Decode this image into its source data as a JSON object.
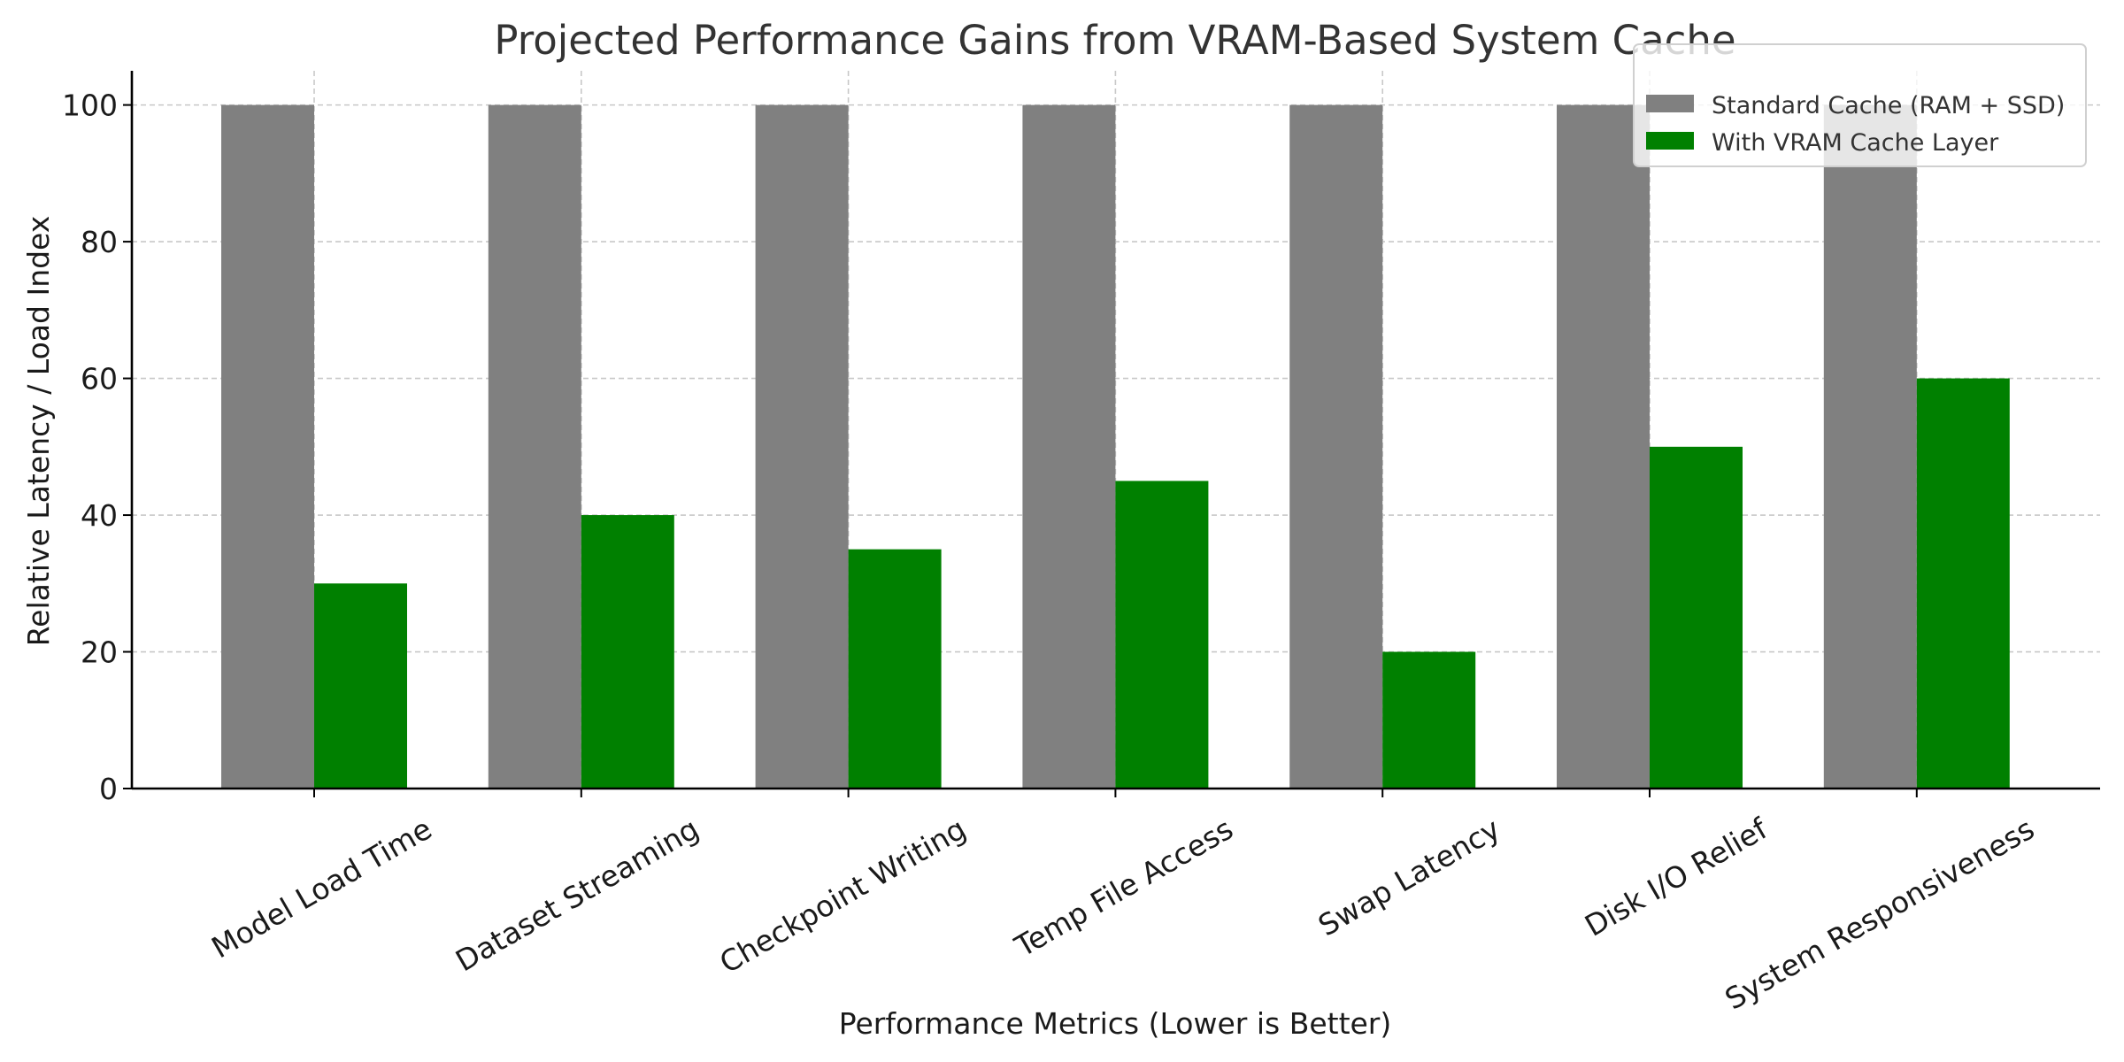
{
  "chart_data": {
    "type": "bar",
    "title": "Projected Performance Gains from VRAM-Based System Cache",
    "xlabel": "Performance Metrics (Lower is Better)",
    "ylabel": "Relative Latency / Load Index",
    "categories": [
      "Model Load Time",
      "Dataset Streaming",
      "Checkpoint Writing",
      "Temp File Access",
      "Swap Latency",
      "Disk I/O Relief",
      "System Responsiveness"
    ],
    "series": [
      {
        "name": "Standard Cache (RAM + SSD)",
        "color": "#808080",
        "values": [
          100,
          100,
          100,
          100,
          100,
          100,
          100
        ]
      },
      {
        "name": "With VRAM Cache Layer",
        "color": "#008000",
        "values": [
          30,
          40,
          35,
          45,
          20,
          50,
          60
        ]
      }
    ],
    "ylim": [
      0,
      105
    ],
    "yticks": [
      0,
      20,
      40,
      60,
      80,
      100
    ],
    "grid": true,
    "legend_position": "top-right"
  }
}
